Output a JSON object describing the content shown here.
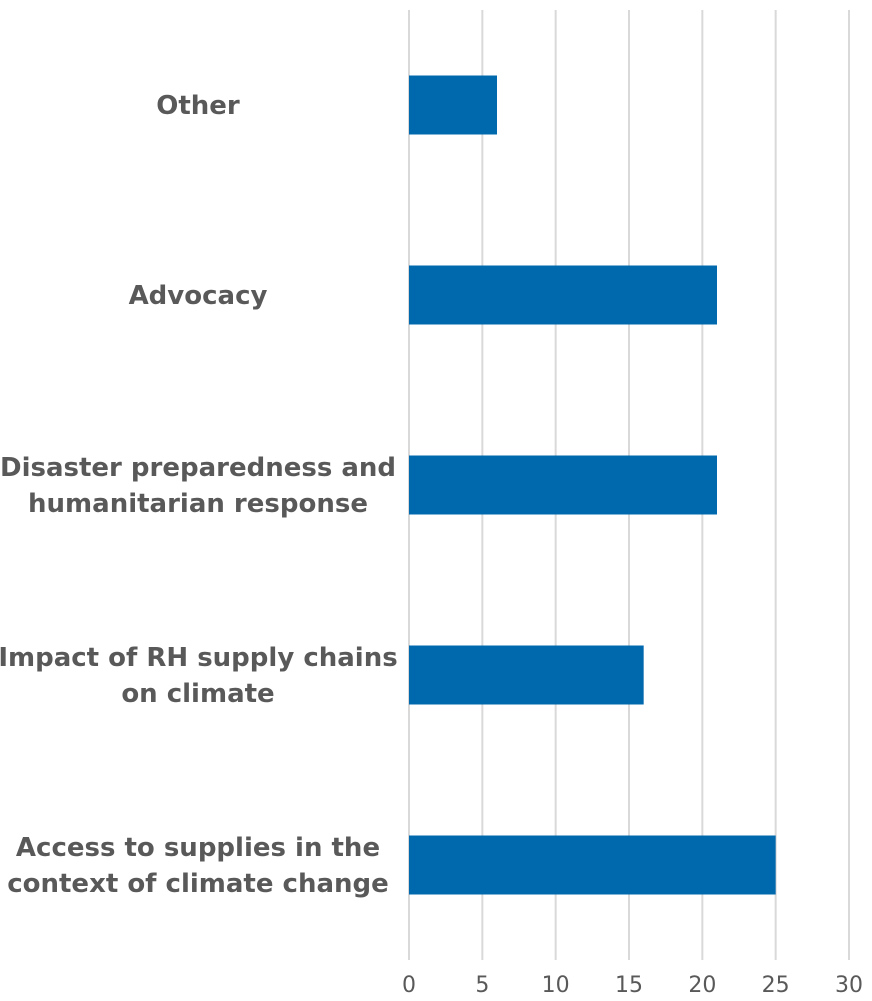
{
  "chart_data": {
    "type": "bar",
    "orientation": "horizontal",
    "categories": [
      "Other",
      "Advocacy",
      "Disaster preparedness and humanitarian response",
      "Impact of RH supply chains on climate",
      "Access to supplies in the context of climate change"
    ],
    "category_lines": [
      [
        "Other"
      ],
      [
        "Advocacy"
      ],
      [
        "Disaster preparedness and",
        "humanitarian response"
      ],
      [
        "Impact of RH supply chains",
        "on climate"
      ],
      [
        "Access to supplies in the",
        "context of climate change"
      ]
    ],
    "values": [
      6,
      21,
      21,
      16,
      25
    ],
    "xlim": [
      0,
      30
    ],
    "xticks": [
      "0",
      "5",
      "10",
      "15",
      "20",
      "25",
      "30"
    ],
    "grid": true,
    "legend": "none",
    "bar_color": "#0068ad",
    "title": "",
    "xlabel": "",
    "ylabel": ""
  }
}
